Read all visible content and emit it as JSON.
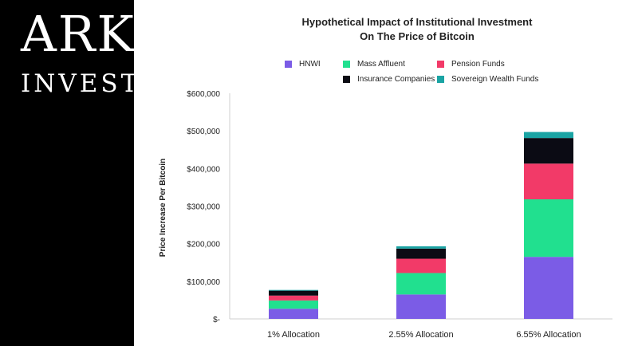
{
  "logo": {
    "line1": "ARK",
    "line2": "INVEST"
  },
  "chart_data": {
    "type": "bar",
    "stacked": true,
    "title": "Hypothetical Impact of Institutional Investment",
    "subtitle": "On The Price of Bitcoin",
    "xlabel": "",
    "ylabel": "Price Increase Per Bitcoin",
    "categories": [
      "1% Allocation",
      "2.55% Allocation",
      "6.55% Allocation"
    ],
    "ylim": [
      0,
      600000
    ],
    "yticks": [
      0,
      100000,
      200000,
      300000,
      400000,
      500000,
      600000
    ],
    "ytick_labels": [
      "$-",
      "$100,000",
      "$200,000",
      "$300,000",
      "$400,000",
      "$500,000",
      "$600,000"
    ],
    "grid": false,
    "legend_position": "top",
    "series": [
      {
        "name": "HNWI",
        "color": "#7b5ce6",
        "values": [
          27000,
          65000,
          165000
        ]
      },
      {
        "name": "Mass Affluent",
        "color": "#21e08f",
        "values": [
          22000,
          57000,
          153000
        ]
      },
      {
        "name": "Pension Funds",
        "color": "#f23a68",
        "values": [
          13000,
          38000,
          95000
        ]
      },
      {
        "name": "Insurance Companies",
        "color": "#0b0b14",
        "values": [
          13000,
          27000,
          68000
        ]
      },
      {
        "name": "Sovereign Wealth Funds",
        "color": "#1aa4a4",
        "values": [
          2000,
          6000,
          16000
        ]
      }
    ]
  }
}
